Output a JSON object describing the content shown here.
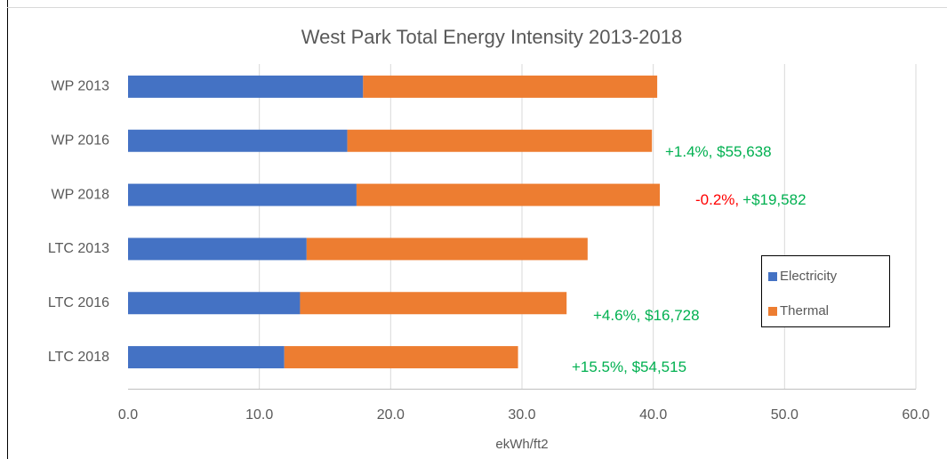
{
  "chart_data": {
    "type": "stacked-bar-horizontal",
    "title": "West Park Total Energy Intensity 2013-2018",
    "x_label": "ekWh/ft2",
    "categories": [
      "WP 2013",
      "WP 2016",
      "WP 2018",
      "LTC 2013",
      "LTC 2016",
      "LTC 2018"
    ],
    "series": [
      {
        "name": "Electricity",
        "color": "#4472c4",
        "values": [
          17.9,
          16.7,
          17.4,
          13.6,
          13.1,
          11.9
        ]
      },
      {
        "name": "Thermal",
        "color": "#ed7d31",
        "values": [
          22.4,
          23.2,
          23.1,
          21.4,
          20.3,
          17.8
        ]
      }
    ],
    "xlim": [
      0,
      60
    ],
    "xticks": [
      {
        "value": 0,
        "label": "0.0"
      },
      {
        "value": 10,
        "label": "10.0"
      },
      {
        "value": 20,
        "label": "20.0"
      },
      {
        "value": 30,
        "label": "30.0"
      },
      {
        "value": 40,
        "label": "40.0"
      },
      {
        "value": 50,
        "label": "50.0"
      },
      {
        "value": 60,
        "label": "60.0"
      }
    ],
    "grid": true,
    "legend": "right",
    "annotations": [
      [
        {
          "text": "+1.4%, $55,638",
          "color": "#00b050"
        }
      ],
      [
        {
          "text": "-0.2%,",
          "color": "#ff0000"
        },
        {
          "text": "+$19,582",
          "color": "#00b050"
        }
      ],
      [
        {
          "text": "+4.6%, $16,728",
          "color": "#00b050"
        }
      ],
      [
        {
          "text": "+15.5%, $54,515",
          "color": "#00b050"
        }
      ]
    ]
  }
}
